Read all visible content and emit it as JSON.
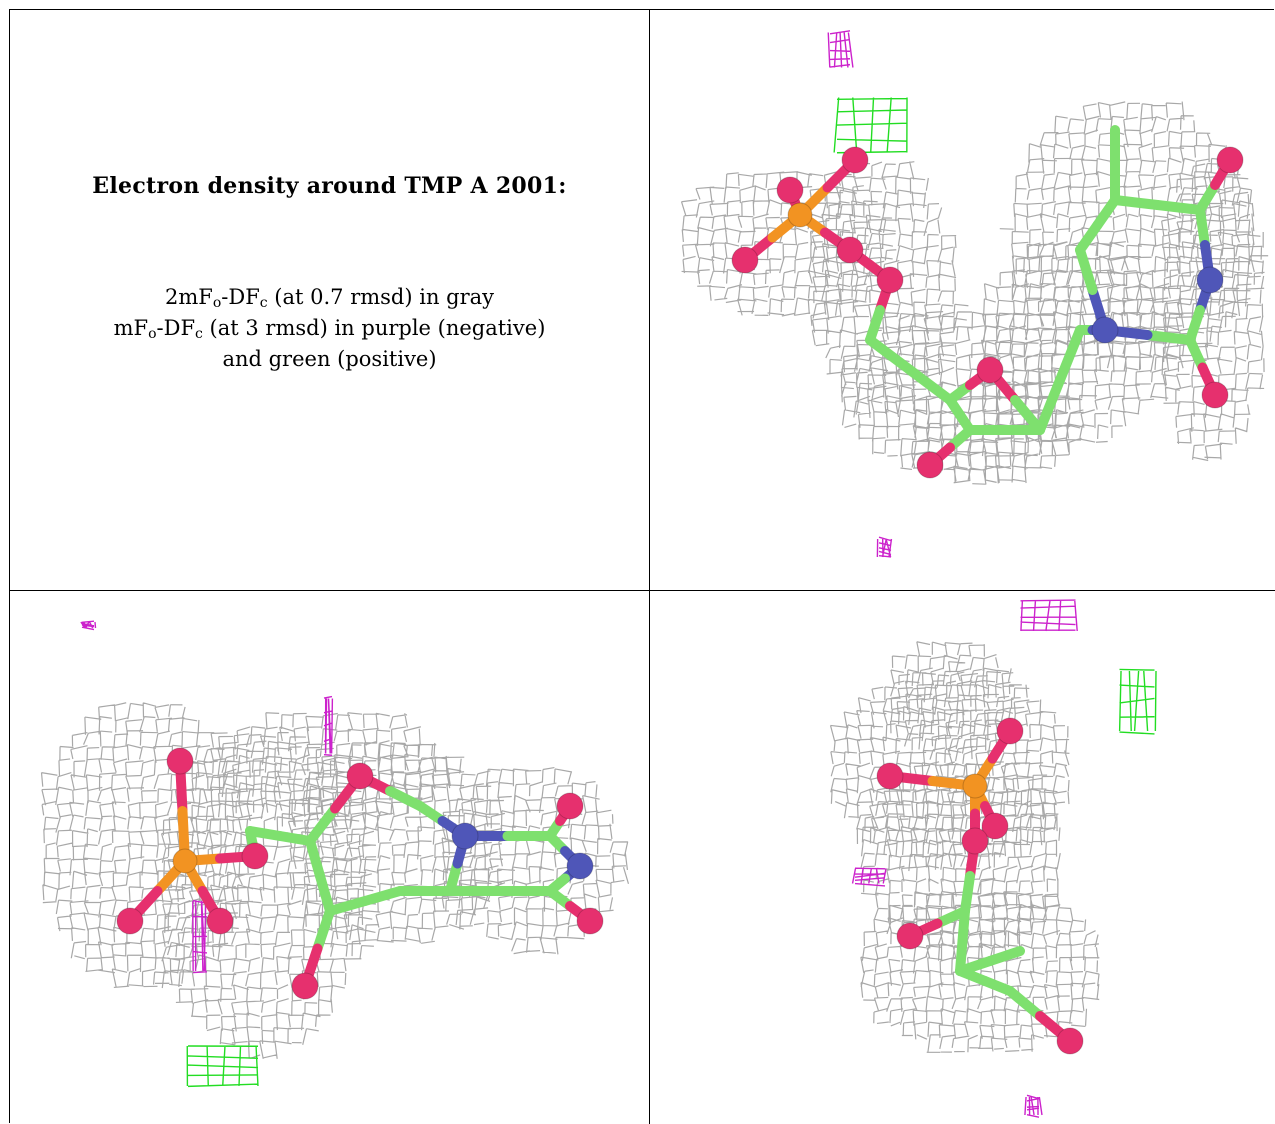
{
  "caption": {
    "title": "Electron density around TMP A 2001:",
    "line1": {
      "a": "2mF",
      "a_sub": "o",
      "b": "-DF",
      "b_sub": "c",
      "c": " (at 0.7 rmsd) in gray"
    },
    "line2": {
      "a": "mF",
      "a_sub": "o",
      "b": "-DF",
      "b_sub": "c",
      "c": " (at 3 rmsd) in purple (negative)"
    },
    "line3": "and green (positive)"
  },
  "colors": {
    "mesh_2fofc": "#9e9e9e",
    "mesh_negative": "#cc22cc",
    "mesh_positive": "#22dd22",
    "carbon": "#7ee06e",
    "oxygen": "#e6306e",
    "nitrogen": "#4f56b8",
    "phosphorus": "#f29322"
  },
  "panels": [
    {
      "id": "view-1",
      "legend": ""
    },
    {
      "id": "view-2",
      "legend": ""
    },
    {
      "id": "view-3",
      "legend": ""
    }
  ]
}
